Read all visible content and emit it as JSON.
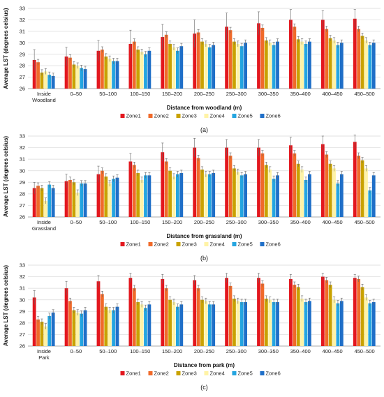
{
  "colors": {
    "Zone1": "#e3171e",
    "Zone2": "#f06a2a",
    "Zone3": "#c9a200",
    "Zone4": "#fff3a6",
    "Zone5": "#24a5e0",
    "Zone6": "#1f6fc8",
    "grid": "#d9d9d9",
    "axis": "#999999"
  },
  "chart_data": [
    {
      "type": "bar",
      "caption": "(a)",
      "ylabel": "Average LST (degrees celsius)",
      "xlabel": "Distance from woodland (m)",
      "ylim": [
        26,
        33
      ],
      "yticks": [
        26,
        27,
        28,
        29,
        30,
        31,
        32,
        33
      ],
      "grid": true,
      "legend_position": "bottom",
      "categories": [
        "Inside Woodland",
        "0–50",
        "50–100",
        "100–150",
        "150–200",
        "200–250",
        "250–300",
        "300–350",
        "350–400",
        "400–450",
        "450–500"
      ],
      "series": [
        {
          "name": "Zone1",
          "values": [
            28.5,
            28.8,
            29.3,
            29.9,
            30.5,
            30.8,
            31.4,
            31.7,
            32.0,
            32.0,
            32.1
          ],
          "errors": [
            0.9,
            0.8,
            0.9,
            1.2,
            1.1,
            1.2,
            1.2,
            1.0,
            0.9,
            0.8,
            0.8
          ]
        },
        {
          "name": "Zone2",
          "values": [
            28.3,
            28.7,
            29.4,
            30.1,
            30.7,
            30.9,
            31.1,
            31.3,
            31.4,
            31.2,
            31.2
          ]
        },
        {
          "name": "Zone3",
          "values": [
            27.4,
            28.1,
            28.8,
            29.4,
            29.9,
            30.1,
            30.1,
            30.2,
            30.3,
            30.4,
            30.6
          ]
        },
        {
          "name": "Zone4",
          "values": [
            27.5,
            28.0,
            28.6,
            29.2,
            29.6,
            29.9,
            29.9,
            30.0,
            30.1,
            30.2,
            30.2
          ]
        },
        {
          "name": "Zone5",
          "values": [
            27.2,
            27.8,
            28.4,
            29.0,
            29.3,
            29.6,
            29.7,
            29.8,
            29.9,
            29.8,
            29.8
          ]
        },
        {
          "name": "Zone6",
          "values": [
            27.1,
            27.7,
            28.4,
            29.3,
            29.7,
            29.8,
            30.0,
            30.1,
            30.1,
            30.0,
            30.0
          ]
        }
      ]
    },
    {
      "type": "bar",
      "caption": "(b)",
      "ylabel": "Average LST (degrees celsius)",
      "xlabel": "Distance from grassland (m)",
      "ylim": [
        26,
        33
      ],
      "yticks": [
        26,
        27,
        28,
        29,
        30,
        31,
        32,
        33
      ],
      "grid": true,
      "legend_position": "bottom",
      "categories": [
        "Inside Grassland",
        "0–50",
        "50–100",
        "100–150",
        "150–200",
        "200–250",
        "250–300",
        "300–350",
        "350–400",
        "400–450",
        "450–500"
      ],
      "series": [
        {
          "name": "Zone1",
          "values": [
            28.5,
            29.1,
            29.7,
            30.8,
            31.6,
            32.0,
            32.0,
            32.0,
            32.2,
            32.3,
            32.5
          ],
          "errors": [
            0.5,
            0.6,
            0.7,
            0.7,
            0.8,
            0.8,
            0.7,
            0.7,
            0.7,
            0.7,
            0.6
          ]
        },
        {
          "name": "Zone2",
          "values": [
            28.7,
            29.2,
            30.0,
            30.5,
            30.8,
            31.1,
            31.3,
            31.5,
            31.5,
            31.4,
            31.3
          ]
        },
        {
          "name": "Zone3",
          "values": [
            28.5,
            29.0,
            29.5,
            29.8,
            30.0,
            30.1,
            30.2,
            30.5,
            30.6,
            30.6,
            30.9
          ]
        },
        {
          "name": "Zone4",
          "values": [
            27.4,
            28.1,
            28.9,
            29.2,
            29.5,
            29.7,
            29.9,
            30.1,
            30.1,
            30.2,
            30.2
          ]
        },
        {
          "name": "Zone5",
          "values": [
            28.8,
            28.9,
            29.3,
            29.6,
            29.7,
            29.7,
            29.6,
            29.3,
            29.2,
            28.9,
            28.3
          ]
        },
        {
          "name": "Zone6",
          "values": [
            28.5,
            28.9,
            29.4,
            29.6,
            29.8,
            29.8,
            29.7,
            29.6,
            29.7,
            29.7,
            29.6
          ]
        }
      ]
    },
    {
      "type": "bar",
      "caption": "(c)",
      "ylabel": "Average LST (degrees celsius)",
      "xlabel": "Distance from park (m)",
      "ylim": [
        26,
        33
      ],
      "yticks": [
        26,
        27,
        28,
        29,
        30,
        31,
        32,
        33
      ],
      "grid": true,
      "legend_position": "bottom",
      "categories": [
        "Inside Park",
        "0–50",
        "50–100",
        "100–150",
        "150–200",
        "200–250",
        "250–300",
        "300–350",
        "350–400",
        "400–450",
        "450–500"
      ],
      "series": [
        {
          "name": "Zone1",
          "values": [
            30.2,
            31.0,
            31.6,
            31.9,
            31.8,
            31.7,
            31.9,
            31.9,
            31.8,
            32.0,
            31.9
          ],
          "errors": [
            0.6,
            0.6,
            0.5,
            0.4,
            0.4,
            0.4,
            0.4,
            0.4,
            0.4,
            0.3,
            0.3
          ]
        },
        {
          "name": "Zone2",
          "values": [
            28.3,
            29.9,
            30.5,
            31.0,
            31.0,
            31.0,
            31.2,
            31.4,
            31.3,
            31.7,
            31.8
          ]
        },
        {
          "name": "Zone3",
          "values": [
            28.1,
            29.1,
            29.4,
            29.8,
            30.0,
            30.0,
            30.1,
            30.1,
            31.1,
            31.3,
            31.1
          ]
        },
        {
          "name": "Zone4",
          "values": [
            27.7,
            28.9,
            29.1,
            29.6,
            29.8,
            29.9,
            29.9,
            30.0,
            30.1,
            30.0,
            30.2
          ]
        },
        {
          "name": "Zone5",
          "values": [
            28.6,
            28.8,
            29.1,
            29.3,
            29.4,
            29.6,
            29.8,
            29.8,
            29.8,
            29.7,
            29.7
          ]
        },
        {
          "name": "Zone6",
          "values": [
            28.9,
            29.1,
            29.4,
            29.6,
            29.6,
            29.6,
            29.8,
            29.8,
            29.9,
            29.9,
            29.8
          ]
        }
      ]
    }
  ]
}
